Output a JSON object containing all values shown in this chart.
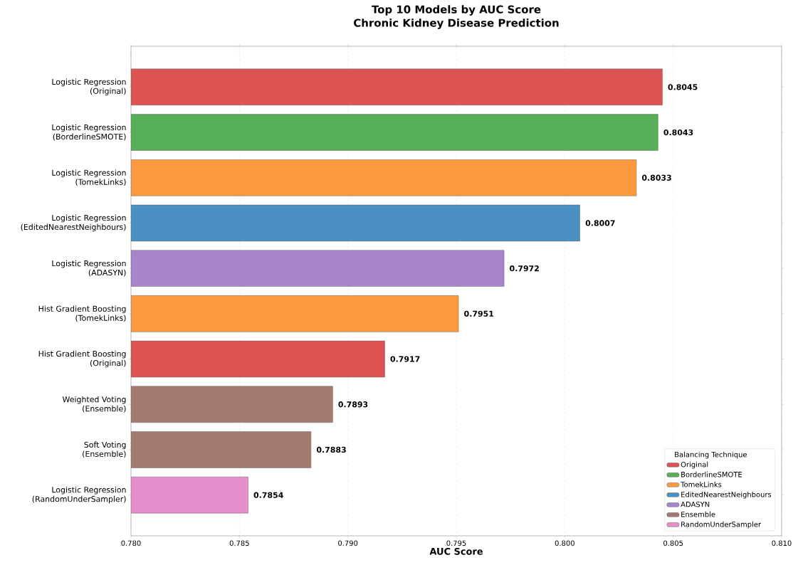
{
  "chart_data": {
    "type": "bar",
    "orientation": "horizontal",
    "title": "Top 10 Models by AUC Score",
    "subtitle": "Chronic Kidney Disease Prediction",
    "xlabel": "AUC Score",
    "legend_title": "Balancing Technique",
    "categories": [
      "Logistic Regression\n(Original)",
      "Logistic Regression\n(BorderlineSMOTE)",
      "Logistic Regression\n(TomekLinks)",
      "Logistic Regression\n(EditedNearestNeighbours)",
      "Logistic Regression\n(ADASYN)",
      "Hist Gradient Boosting\n(TomekLinks)",
      "Hist Gradient Boosting\n(Original)",
      "Weighted Voting\n(Ensemble)",
      "Soft Voting\n(Ensemble)",
      "Logistic Regression\n(RandomUnderSampler)"
    ],
    "series": [
      {
        "name": "Original",
        "color": "#dd5253",
        "values": [
          0.8045,
          null,
          null,
          null,
          null,
          null,
          0.7917,
          null,
          null,
          null
        ]
      },
      {
        "name": "BorderlineSMOTE",
        "color": "#57b058",
        "values": [
          null,
          0.8043,
          null,
          null,
          null,
          null,
          null,
          null,
          null,
          null
        ]
      },
      {
        "name": "TomekLinks",
        "color": "#fd9a40",
        "values": [
          null,
          null,
          0.8033,
          null,
          null,
          0.7951,
          null,
          null,
          null,
          null
        ]
      },
      {
        "name": "EditedNearestNeighbours",
        "color": "#4a90c2",
        "values": [
          null,
          null,
          null,
          0.8007,
          null,
          null,
          null,
          null,
          null,
          null
        ]
      },
      {
        "name": "ADASYN",
        "color": "#a885c8",
        "values": [
          null,
          null,
          null,
          null,
          0.7972,
          null,
          null,
          null,
          null,
          null
        ]
      },
      {
        "name": "Ensemble",
        "color": "#a47a6e",
        "values": [
          null,
          null,
          null,
          null,
          null,
          null,
          null,
          0.7893,
          0.7883,
          null
        ]
      },
      {
        "name": "RandomUnderSampler",
        "color": "#e68fcc",
        "values": [
          null,
          null,
          null,
          null,
          null,
          null,
          null,
          null,
          null,
          0.7854
        ]
      }
    ],
    "data_labels": true,
    "xlim": [
      0.78,
      0.81
    ],
    "xticks": [
      {
        "value": 0.78,
        "label": "0.780"
      },
      {
        "value": 0.785,
        "label": "0.785"
      },
      {
        "value": 0.79,
        "label": "0.790"
      },
      {
        "value": 0.795,
        "label": "0.795"
      },
      {
        "value": 0.8,
        "label": "0.800"
      },
      {
        "value": 0.805,
        "label": "0.805"
      },
      {
        "value": 0.81,
        "label": "0.810"
      }
    ],
    "grid": "x",
    "legend": "bottom right"
  }
}
